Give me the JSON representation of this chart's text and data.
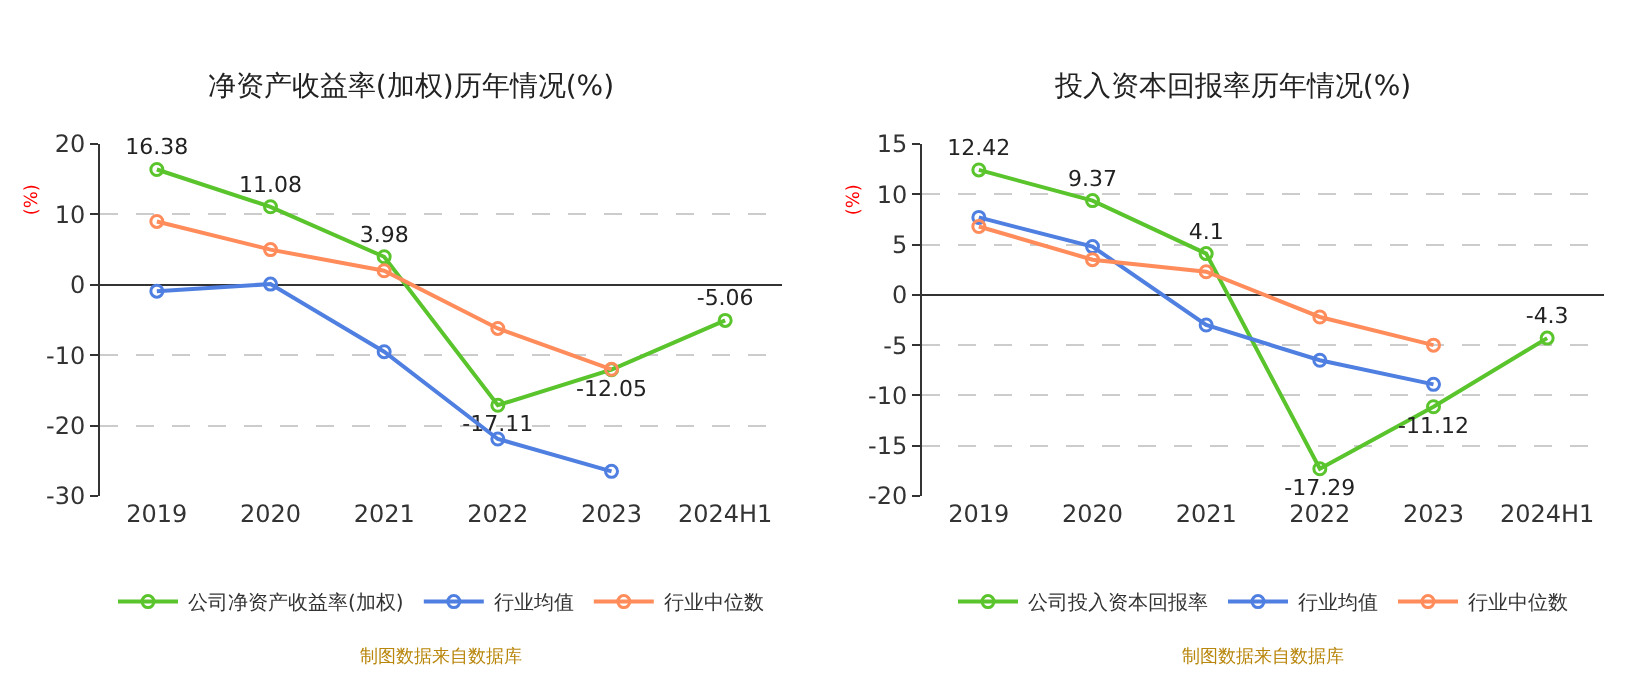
{
  "chart_data": [
    {
      "type": "line",
      "title": "净资产收益率(加权)历年情况(%)",
      "ylabel": "(%)",
      "categories": [
        "2019",
        "2020",
        "2021",
        "2022",
        "2023",
        "2024H1"
      ],
      "ylim": [
        -30,
        20
      ],
      "yticks": [
        -30,
        -20,
        -10,
        0,
        10,
        20
      ],
      "grid": "y",
      "legend": "bottom",
      "marker": "circle",
      "line_style": "solid",
      "series": [
        {
          "name": "公司净资产收益率(加权)",
          "color": "#5ac42c",
          "values": [
            16.38,
            11.08,
            3.98,
            -17.11,
            -12.05,
            -5.06
          ],
          "value_labels": [
            "16.38",
            "11.08",
            "3.98",
            "-17.11",
            "-12.05",
            "-5.06"
          ]
        },
        {
          "name": "行业均值",
          "color": "#4f7fe0",
          "values": [
            -0.9,
            0.1,
            -9.5,
            -21.9,
            -26.5,
            null
          ]
        },
        {
          "name": "行业中位数",
          "color": "#ff8c5a",
          "values": [
            9,
            5,
            2,
            -6.2,
            -12,
            null
          ]
        }
      ],
      "annotations": [
        "制图数据来自数据库"
      ]
    },
    {
      "type": "line",
      "title": "投入资本回报率历年情况(%)",
      "ylabel": "(%)",
      "categories": [
        "2019",
        "2020",
        "2021",
        "2022",
        "2023",
        "2024H1"
      ],
      "ylim": [
        -20,
        15
      ],
      "yticks": [
        -20,
        -15,
        -10,
        -5,
        0,
        5,
        10,
        15
      ],
      "grid": "y",
      "legend": "bottom",
      "marker": "circle",
      "line_style": "solid",
      "series": [
        {
          "name": "公司投入资本回报率",
          "color": "#5ac42c",
          "values": [
            12.42,
            9.37,
            4.1,
            -17.29,
            -11.12,
            -4.3
          ],
          "value_labels": [
            "12.42",
            "9.37",
            "4.1",
            "-17.29",
            "-11.12",
            "-4.3"
          ]
        },
        {
          "name": "行业均值",
          "color": "#4f7fe0",
          "values": [
            7.7,
            4.8,
            -3,
            -6.5,
            -8.9,
            null
          ]
        },
        {
          "name": "行业中位数",
          "color": "#ff8c5a",
          "values": [
            6.8,
            3.5,
            2.3,
            -2.2,
            -5,
            null
          ]
        }
      ],
      "annotations": [
        "制图数据来自数据库"
      ]
    }
  ]
}
